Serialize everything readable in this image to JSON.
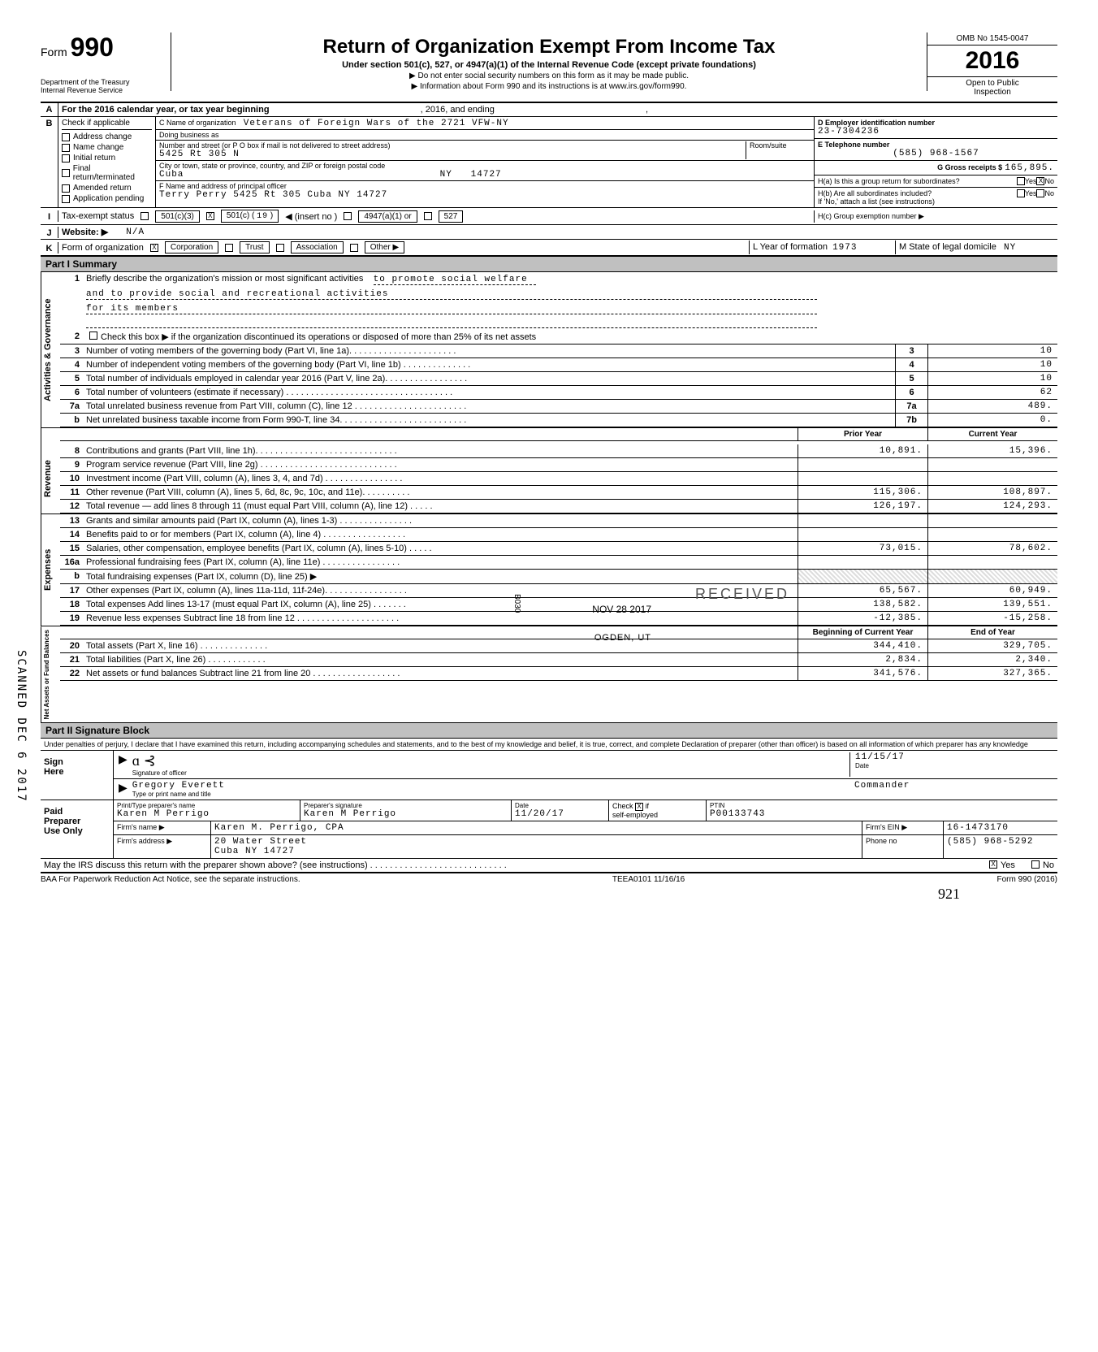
{
  "header": {
    "form_label": "Form",
    "form_number": "990",
    "department": "Department of the Treasury",
    "agency": "Internal Revenue Service",
    "title": "Return of Organization Exempt From Income Tax",
    "subtitle": "Under section 501(c), 527, or 4947(a)(1) of the Internal Revenue Code (except private foundations)",
    "note1": "▶ Do not enter social security numbers on this form as it may be made public.",
    "note2": "▶ Information about Form 990 and its instructions is at www.irs.gov/form990.",
    "omb": "OMB No  1545-0047",
    "year": "2016",
    "open1": "Open to Public",
    "open2": "Inspection"
  },
  "rowA": {
    "text": "For the 2016 calendar year, or tax year beginning",
    "mid": ", 2016, and ending",
    "end": ","
  },
  "B": {
    "header": "Check if applicable",
    "items": [
      "Address change",
      "Name change",
      "Initial return",
      "Final return/terminated",
      "Amended return",
      "Application pending"
    ]
  },
  "C": {
    "name_label": "C  Name of organization",
    "name_value": "Veterans of Foreign Wars of the 2721 VFW-NY",
    "dba_label": "Doing business as",
    "street_label": "Number and street (or P O  box if mail is not delivered to street address)",
    "room_label": "Room/suite",
    "street_value": "5425 Rt 305 N",
    "city_label": "City or town, state or province, country, and ZIP or foreign postal code",
    "city_value": "Cuba",
    "state_value": "NY",
    "zip_value": "14727",
    "officer_label": "F  Name and address of principal officer",
    "officer_value": "Terry Perry 5425 Rt 305    Cuba           NY 14727"
  },
  "D": {
    "label": "D   Employer identification number",
    "value": "23-7304236"
  },
  "E": {
    "label": "E   Telephone number",
    "value": "(585) 968-1567"
  },
  "G": {
    "label": "G   Gross receipts $",
    "value": "165,895."
  },
  "H": {
    "a_label": "H(a)  Is this a group return for subordinates?",
    "b_label": "H(b)  Are all subordinates included?",
    "b_note": "If 'No,' attach a list  (see instructions)",
    "c_label": "H(c)  Group exemption number ▶",
    "yes": "Yes",
    "no": "No",
    "a_checked": "X"
  },
  "I": {
    "label": "Tax-exempt status",
    "opts": [
      "501(c)(3)",
      "501(c) (",
      "◀ (insert no )",
      "4947(a)(1) or",
      "527"
    ],
    "checked_501c": "X",
    "insert_no": "19",
    "close_paren": ")"
  },
  "J": {
    "label": "Website: ▶",
    "value": "N/A"
  },
  "K": {
    "label": "Form of organization",
    "opts": [
      "Corporation",
      "Trust",
      "Association",
      "Other ▶"
    ],
    "corp_checked": "X",
    "L_label": "L  Year of formation",
    "L_value": "1973",
    "M_label": "M  State of legal domicile",
    "M_value": "NY"
  },
  "part1": {
    "header": "Part I     Summary",
    "gov_label": "Activities & Governance",
    "line1_label": "Briefly describe the organization's mission or most significant activities",
    "line1_val1": "to promote social welfare",
    "line1_val2": "and to provide social and recreational activities",
    "line1_val3": "for its members",
    "line2": "Check this box ▶       if the organization discontinued its operations or disposed of more than 25% of its net assets",
    "lines_gov": [
      {
        "n": "3",
        "t": "Number of voting members of the governing body (Part VI, line 1a). . . . . . . . . . . . . . . . . . . . . .",
        "box": "3",
        "v": "10"
      },
      {
        "n": "4",
        "t": "Number of independent voting members of the governing body (Part VI, line 1b) . . . . . . . . . . . . . .",
        "box": "4",
        "v": "10"
      },
      {
        "n": "5",
        "t": "Total number of individuals employed in calendar year 2016 (Part V, line 2a). . . . . . . . . . . . . . . . .",
        "box": "5",
        "v": "10"
      },
      {
        "n": "6",
        "t": "Total number of volunteers (estimate if necessary) . . . . . . . . . . . . . . . . . . . . . . . . . . . . . . . . . .",
        "box": "6",
        "v": "62"
      },
      {
        "n": "7a",
        "t": "Total unrelated business revenue from Part VIII, column (C), line 12 . . . . . . . . . . . . . . . . . . . . . . .",
        "box": "7a",
        "v": "489."
      },
      {
        "n": "b",
        "t": "Net unrelated business taxable income from Form 990-T, line 34. . . . . . . . . . . . . . . . . . . . . . . . . .",
        "box": "7b",
        "v": "0."
      }
    ],
    "prior_header": "Prior Year",
    "current_header": "Current Year",
    "rev_label": "Revenue",
    "rev_lines": [
      {
        "n": "8",
        "t": "Contributions and grants (Part VIII, line 1h). . . . . . . . . . . . . . . . . . . . . . . . . . . . .",
        "p": "10,891.",
        "c": "15,396."
      },
      {
        "n": "9",
        "t": "Program service revenue (Part VIII, line 2g)  . . . . . . . . . . . . . . . . . . . . . . . . . . . .",
        "p": "",
        "c": ""
      },
      {
        "n": "10",
        "t": "Investment income (Part VIII, column (A), lines 3, 4, and 7d) . . . . . . . . . . . . . . . .",
        "p": "",
        "c": ""
      },
      {
        "n": "11",
        "t": "Other revenue (Part VIII, column (A), lines 5, 6d, 8c, 9c, 10c, and 11e). . . . . . . . . .",
        "p": "115,306.",
        "c": "108,897."
      },
      {
        "n": "12",
        "t": "Total revenue — add lines 8 through 11 (must equal Part VIII, column (A), line 12) . . . . .",
        "p": "126,197.",
        "c": "124,293."
      }
    ],
    "exp_label": "Expenses",
    "exp_lines": [
      {
        "n": "13",
        "t": "Grants and similar amounts paid (Part IX, column (A), lines 1-3) . . . . . . . . . . . . . . .",
        "p": "",
        "c": ""
      },
      {
        "n": "14",
        "t": "Benefits paid to or for members (Part IX, column (A), line 4) . . . . . . . . . . . . . . . . .",
        "p": "",
        "c": ""
      },
      {
        "n": "15",
        "t": "Salaries, other compensation, employee benefits (Part IX, column (A), lines 5-10) . . . . .",
        "p": "73,015.",
        "c": "78,602."
      },
      {
        "n": "16a",
        "t": "Professional fundraising fees (Part IX, column (A), line 11e)  . . . . . . . . . . . . . . . .",
        "p": "",
        "c": ""
      },
      {
        "n": "b",
        "t": "Total fundraising expenses (Part IX, column (D), line 25) ▶",
        "p": "hatched",
        "c": "hatched"
      },
      {
        "n": "17",
        "t": "Other expenses (Part IX, column (A), lines 11a-11d, 11f-24e). . . . . . . . . . . . . . . . .",
        "p": "65,567.",
        "c": "60,949."
      },
      {
        "n": "18",
        "t": "Total expenses  Add lines 13-17 (must equal Part IX, column (A), line 25) . . . . . . .",
        "p": "138,582.",
        "c": "139,551."
      },
      {
        "n": "19",
        "t": "Revenue less expenses  Subtract line 18 from line 12 . . . . . . . . . . . . . . . . . . . . .",
        "p": "-12,385.",
        "c": "-15,258."
      }
    ],
    "net_label": "Net Assets or\nFund Balances",
    "boy_header": "Beginning of Current Year",
    "eoy_header": "End of Year",
    "net_lines": [
      {
        "n": "20",
        "t": "Total assets (Part X, line 16) . . . . . . . . . . . . . .",
        "p": "344,410.",
        "c": "329,705."
      },
      {
        "n": "21",
        "t": "Total liabilities (Part X, line 26) . . . . . . . . . . . .",
        "p": "2,834.",
        "c": "2,340."
      },
      {
        "n": "22",
        "t": "Net assets or fund balances  Subtract line 21 from line 20 . . . . . . . . . . . . . . . . . .",
        "p": "341,576.",
        "c": "327,365."
      }
    ],
    "received_stamp": "RECEIVED",
    "received_date": "NOV 28 2017",
    "received_loc": "OGDEN, UT",
    "b030": "B030"
  },
  "part2": {
    "header": "Part II    Signature Block",
    "perjury": "Under penalties of perjury, I declare that I have examined this return, including accompanying schedules and statements, and to the best of my knowledge and belief, it is true, correct, and complete  Declaration of preparer (other than officer) is based on all information of which preparer has any knowledge",
    "sign_here": "Sign\nHere",
    "sig_label": "Signature of officer",
    "date_label": "Date",
    "sig_date": "11/15/17",
    "name_label": "Type or print name and title",
    "name_value": "Gregory Everett",
    "title_value": "Commander",
    "paid": "Paid\nPreparer\nUse Only",
    "prep_name_label": "Print/Type preparer's name",
    "prep_name": "Karen M Perrigo",
    "prep_sig_label": "Preparer's signature",
    "prep_sig": "Karen M Perrigo",
    "prep_date_label": "Date",
    "prep_date": "11/20/17",
    "check_label": "Check",
    "check_if": "if",
    "self_emp": "self-employed",
    "check_x": "X",
    "ptin_label": "PTIN",
    "ptin": "P00133743",
    "firm_name_label": "Firm's name    ▶",
    "firm_name": "Karen M. Perrigo, CPA",
    "firm_ein_label": "Firm's EIN ▶",
    "firm_ein": "16-1473170",
    "firm_addr_label": "Firm's address    ▶",
    "firm_addr1": "20 Water Street",
    "firm_addr2": "Cuba                        NY   14727",
    "phone_label": "Phone no",
    "phone": "(585) 968-5292",
    "discuss": "May the IRS discuss this return with the preparer shown above? (see instructions) . . . . . . . . . . . . . . . . . . . . . . . . . . . .",
    "discuss_yes": "Yes",
    "discuss_no": "No",
    "discuss_x": "X"
  },
  "footer": {
    "baa": "BAA  For Paperwork Reduction Act Notice, see the separate instructions.",
    "code": "TEEA0101  11/16/16",
    "form": "Form 990 (2016)",
    "handwritten": "921"
  },
  "scanned": "SCANNED DEC 6 2017"
}
